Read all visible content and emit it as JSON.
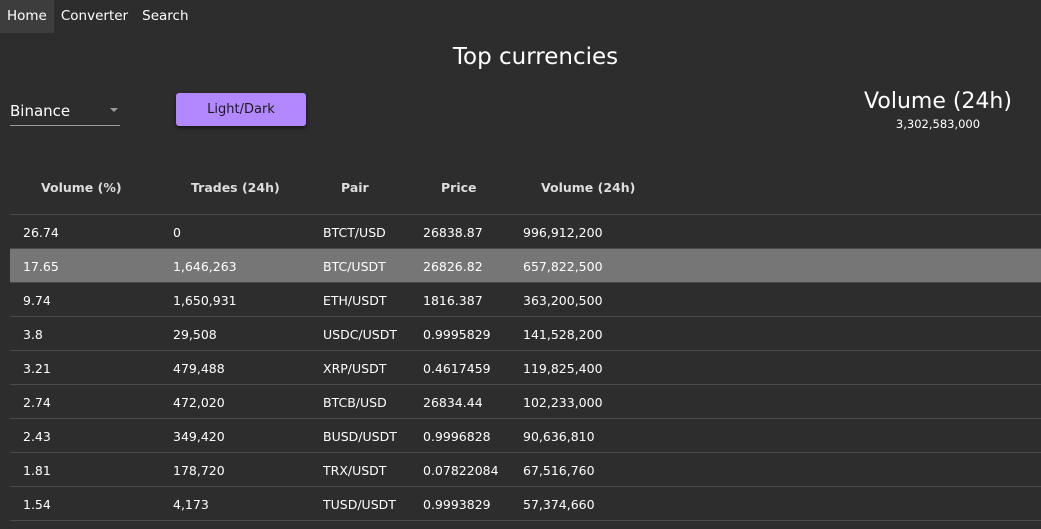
{
  "nav": {
    "items": [
      {
        "label": "Home",
        "name": "nav-home"
      },
      {
        "label": "Converter",
        "name": "nav-converter"
      },
      {
        "label": "Search",
        "name": "nav-search"
      }
    ],
    "active": "Home"
  },
  "page_title": "Top currencies",
  "exchange_select": {
    "value": "Binance"
  },
  "theme_button": {
    "label": "Light/Dark"
  },
  "volume_summary": {
    "title": "Volume (24h)",
    "value": "3,302,583,000"
  },
  "colors": {
    "background": "#2d2d2d",
    "nav_active": "#3d3d3d",
    "accent": "#b388ff",
    "selected_row": "#767676",
    "divider": "#4a4a4a"
  },
  "table": {
    "headers": [
      "Volume (%)",
      "Trades (24h)",
      "Pair",
      "Price",
      "Volume (24h)"
    ],
    "selected_row": 1,
    "rows": [
      [
        "26.74",
        "0",
        "BTCT/USD",
        "26838.87",
        "996,912,200"
      ],
      [
        "17.65",
        "1,646,263",
        "BTC/USDT",
        "26826.82",
        "657,822,500"
      ],
      [
        "9.74",
        "1,650,931",
        "ETH/USDT",
        "1816.387",
        "363,200,500"
      ],
      [
        "3.8",
        "29,508",
        "USDC/USDT",
        "0.9995829",
        "141,528,200"
      ],
      [
        "3.21",
        "479,488",
        "XRP/USDT",
        "0.4617459",
        "119,825,400"
      ],
      [
        "2.74",
        "472,020",
        "BTCB/USD",
        "26834.44",
        "102,233,000"
      ],
      [
        "2.43",
        "349,420",
        "BUSD/USDT",
        "0.9996828",
        "90,636,810"
      ],
      [
        "1.81",
        "178,720",
        "TRX/USDT",
        "0.07822084",
        "67,516,760"
      ],
      [
        "1.54",
        "4,173",
        "TUSD/USDT",
        "0.9993829",
        "57,374,660"
      ]
    ]
  }
}
